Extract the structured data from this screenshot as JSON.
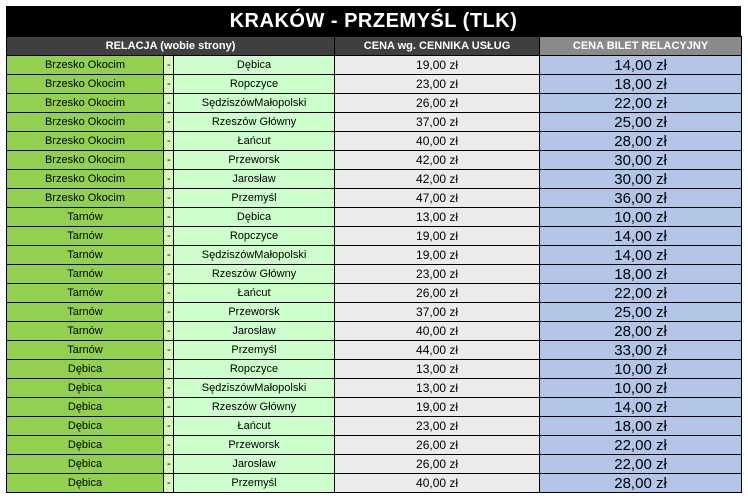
{
  "title": "KRAKÓW - PRZEMYŚL (TLK)",
  "headers": {
    "relation": "RELACJA (wobie strony)",
    "service_price": "CENA wg. CENNIKA USŁUG",
    "relation_ticket_price": "CENA BILET RELACYJNY"
  },
  "rows": [
    {
      "from": "Brzesko Okocim",
      "sep": "-",
      "to": "Dębica",
      "price": "19,00 zł",
      "ticket": "14,00 zł"
    },
    {
      "from": "Brzesko Okocim",
      "sep": "-",
      "to": "Ropczyce",
      "price": "23,00 zł",
      "ticket": "18,00 zł"
    },
    {
      "from": "Brzesko Okocim",
      "sep": "-",
      "to": "SędziszówMałopolski",
      "price": "26,00 zł",
      "ticket": "22,00 zł"
    },
    {
      "from": "Brzesko Okocim",
      "sep": "-",
      "to": "Rzeszów Główny",
      "price": "37,00 zł",
      "ticket": "25,00 zł"
    },
    {
      "from": "Brzesko Okocim",
      "sep": "-",
      "to": "Łańcut",
      "price": "40,00 zł",
      "ticket": "28,00 zł"
    },
    {
      "from": "Brzesko Okocim",
      "sep": "-",
      "to": "Przeworsk",
      "price": "42,00 zł",
      "ticket": "30,00 zł"
    },
    {
      "from": "Brzesko Okocim",
      "sep": "-",
      "to": "Jarosław",
      "price": "42,00 zł",
      "ticket": "30,00 zł"
    },
    {
      "from": "Brzesko Okocim",
      "sep": "-",
      "to": "Przemyśl",
      "price": "47,00 zł",
      "ticket": "36,00 zł"
    },
    {
      "from": "Tarnów",
      "sep": "-",
      "to": "Dębica",
      "price": "13,00 zł",
      "ticket": "10,00 zł"
    },
    {
      "from": "Tarnów",
      "sep": "-",
      "to": "Ropczyce",
      "price": "19,00 zł",
      "ticket": "14,00 zł"
    },
    {
      "from": "Tarnów",
      "sep": "-",
      "to": "SędziszówMałopolski",
      "price": "19,00 zł",
      "ticket": "14,00 zł"
    },
    {
      "from": "Tarnów",
      "sep": "-",
      "to": "Rzeszów Główny",
      "price": "23,00 zł",
      "ticket": "18,00 zł"
    },
    {
      "from": "Tarnów",
      "sep": "-",
      "to": "Łańcut",
      "price": "26,00 zł",
      "ticket": "22,00 zł"
    },
    {
      "from": "Tarnów",
      "sep": "-",
      "to": "Przeworsk",
      "price": "37,00 zł",
      "ticket": "25,00 zł"
    },
    {
      "from": "Tarnów",
      "sep": "-",
      "to": "Jarosław",
      "price": "40,00 zł",
      "ticket": "28,00 zł"
    },
    {
      "from": "Tarnów",
      "sep": "-",
      "to": "Przemyśl",
      "price": "44,00 zł",
      "ticket": "33,00 zł"
    },
    {
      "from": "Dębica",
      "sep": "-",
      "to": "Ropczyce",
      "price": "13,00 zł",
      "ticket": "10,00 zł"
    },
    {
      "from": "Dębica",
      "sep": "-",
      "to": "SędziszówMałopolski",
      "price": "13,00 zł",
      "ticket": "10,00 zł"
    },
    {
      "from": "Dębica",
      "sep": "-",
      "to": "Rzeszów Główny",
      "price": "19,00 zł",
      "ticket": "14,00 zł"
    },
    {
      "from": "Dębica",
      "sep": "-",
      "to": "Łańcut",
      "price": "23,00 zł",
      "ticket": "18,00 zł"
    },
    {
      "from": "Dębica",
      "sep": "-",
      "to": "Przeworsk",
      "price": "26,00 zł",
      "ticket": "22,00 zł"
    },
    {
      "from": "Dębica",
      "sep": "-",
      "to": "Jarosław",
      "price": "26,00 zł",
      "ticket": "22,00 zł"
    },
    {
      "from": "Dębica",
      "sep": "-",
      "to": "Przemyśl",
      "price": "40,00 zł",
      "ticket": "28,00 zł"
    }
  ]
}
